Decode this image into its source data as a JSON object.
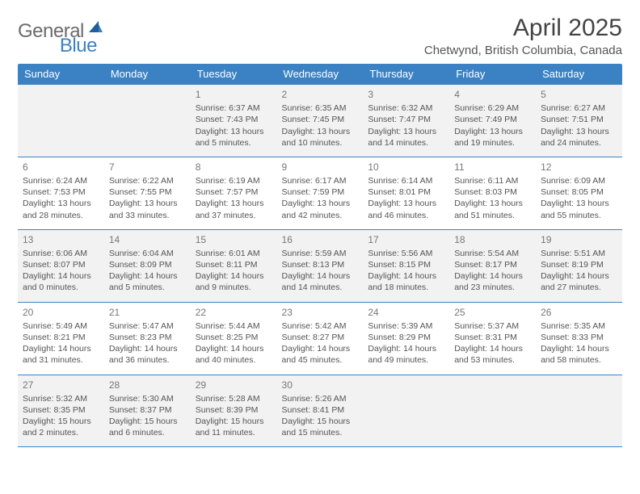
{
  "logo": {
    "part1": "General",
    "part2": "Blue"
  },
  "title": "April 2025",
  "subtitle": "Chetwynd, British Columbia, Canada",
  "colors": {
    "header_bg": "#3b82c4",
    "header_text": "#ffffff",
    "cell_text": "#555555",
    "alt_row_bg": "#f2f2f2",
    "border": "#3b82c4"
  },
  "daynames": [
    "Sunday",
    "Monday",
    "Tuesday",
    "Wednesday",
    "Thursday",
    "Friday",
    "Saturday"
  ],
  "weeks": [
    [
      null,
      null,
      {
        "n": "1",
        "sr": "Sunrise: 6:37 AM",
        "ss": "Sunset: 7:43 PM",
        "d1": "Daylight: 13 hours",
        "d2": "and 5 minutes."
      },
      {
        "n": "2",
        "sr": "Sunrise: 6:35 AM",
        "ss": "Sunset: 7:45 PM",
        "d1": "Daylight: 13 hours",
        "d2": "and 10 minutes."
      },
      {
        "n": "3",
        "sr": "Sunrise: 6:32 AM",
        "ss": "Sunset: 7:47 PM",
        "d1": "Daylight: 13 hours",
        "d2": "and 14 minutes."
      },
      {
        "n": "4",
        "sr": "Sunrise: 6:29 AM",
        "ss": "Sunset: 7:49 PM",
        "d1": "Daylight: 13 hours",
        "d2": "and 19 minutes."
      },
      {
        "n": "5",
        "sr": "Sunrise: 6:27 AM",
        "ss": "Sunset: 7:51 PM",
        "d1": "Daylight: 13 hours",
        "d2": "and 24 minutes."
      }
    ],
    [
      {
        "n": "6",
        "sr": "Sunrise: 6:24 AM",
        "ss": "Sunset: 7:53 PM",
        "d1": "Daylight: 13 hours",
        "d2": "and 28 minutes."
      },
      {
        "n": "7",
        "sr": "Sunrise: 6:22 AM",
        "ss": "Sunset: 7:55 PM",
        "d1": "Daylight: 13 hours",
        "d2": "and 33 minutes."
      },
      {
        "n": "8",
        "sr": "Sunrise: 6:19 AM",
        "ss": "Sunset: 7:57 PM",
        "d1": "Daylight: 13 hours",
        "d2": "and 37 minutes."
      },
      {
        "n": "9",
        "sr": "Sunrise: 6:17 AM",
        "ss": "Sunset: 7:59 PM",
        "d1": "Daylight: 13 hours",
        "d2": "and 42 minutes."
      },
      {
        "n": "10",
        "sr": "Sunrise: 6:14 AM",
        "ss": "Sunset: 8:01 PM",
        "d1": "Daylight: 13 hours",
        "d2": "and 46 minutes."
      },
      {
        "n": "11",
        "sr": "Sunrise: 6:11 AM",
        "ss": "Sunset: 8:03 PM",
        "d1": "Daylight: 13 hours",
        "d2": "and 51 minutes."
      },
      {
        "n": "12",
        "sr": "Sunrise: 6:09 AM",
        "ss": "Sunset: 8:05 PM",
        "d1": "Daylight: 13 hours",
        "d2": "and 55 minutes."
      }
    ],
    [
      {
        "n": "13",
        "sr": "Sunrise: 6:06 AM",
        "ss": "Sunset: 8:07 PM",
        "d1": "Daylight: 14 hours",
        "d2": "and 0 minutes."
      },
      {
        "n": "14",
        "sr": "Sunrise: 6:04 AM",
        "ss": "Sunset: 8:09 PM",
        "d1": "Daylight: 14 hours",
        "d2": "and 5 minutes."
      },
      {
        "n": "15",
        "sr": "Sunrise: 6:01 AM",
        "ss": "Sunset: 8:11 PM",
        "d1": "Daylight: 14 hours",
        "d2": "and 9 minutes."
      },
      {
        "n": "16",
        "sr": "Sunrise: 5:59 AM",
        "ss": "Sunset: 8:13 PM",
        "d1": "Daylight: 14 hours",
        "d2": "and 14 minutes."
      },
      {
        "n": "17",
        "sr": "Sunrise: 5:56 AM",
        "ss": "Sunset: 8:15 PM",
        "d1": "Daylight: 14 hours",
        "d2": "and 18 minutes."
      },
      {
        "n": "18",
        "sr": "Sunrise: 5:54 AM",
        "ss": "Sunset: 8:17 PM",
        "d1": "Daylight: 14 hours",
        "d2": "and 23 minutes."
      },
      {
        "n": "19",
        "sr": "Sunrise: 5:51 AM",
        "ss": "Sunset: 8:19 PM",
        "d1": "Daylight: 14 hours",
        "d2": "and 27 minutes."
      }
    ],
    [
      {
        "n": "20",
        "sr": "Sunrise: 5:49 AM",
        "ss": "Sunset: 8:21 PM",
        "d1": "Daylight: 14 hours",
        "d2": "and 31 minutes."
      },
      {
        "n": "21",
        "sr": "Sunrise: 5:47 AM",
        "ss": "Sunset: 8:23 PM",
        "d1": "Daylight: 14 hours",
        "d2": "and 36 minutes."
      },
      {
        "n": "22",
        "sr": "Sunrise: 5:44 AM",
        "ss": "Sunset: 8:25 PM",
        "d1": "Daylight: 14 hours",
        "d2": "and 40 minutes."
      },
      {
        "n": "23",
        "sr": "Sunrise: 5:42 AM",
        "ss": "Sunset: 8:27 PM",
        "d1": "Daylight: 14 hours",
        "d2": "and 45 minutes."
      },
      {
        "n": "24",
        "sr": "Sunrise: 5:39 AM",
        "ss": "Sunset: 8:29 PM",
        "d1": "Daylight: 14 hours",
        "d2": "and 49 minutes."
      },
      {
        "n": "25",
        "sr": "Sunrise: 5:37 AM",
        "ss": "Sunset: 8:31 PM",
        "d1": "Daylight: 14 hours",
        "d2": "and 53 minutes."
      },
      {
        "n": "26",
        "sr": "Sunrise: 5:35 AM",
        "ss": "Sunset: 8:33 PM",
        "d1": "Daylight: 14 hours",
        "d2": "and 58 minutes."
      }
    ],
    [
      {
        "n": "27",
        "sr": "Sunrise: 5:32 AM",
        "ss": "Sunset: 8:35 PM",
        "d1": "Daylight: 15 hours",
        "d2": "and 2 minutes."
      },
      {
        "n": "28",
        "sr": "Sunrise: 5:30 AM",
        "ss": "Sunset: 8:37 PM",
        "d1": "Daylight: 15 hours",
        "d2": "and 6 minutes."
      },
      {
        "n": "29",
        "sr": "Sunrise: 5:28 AM",
        "ss": "Sunset: 8:39 PM",
        "d1": "Daylight: 15 hours",
        "d2": "and 11 minutes."
      },
      {
        "n": "30",
        "sr": "Sunrise: 5:26 AM",
        "ss": "Sunset: 8:41 PM",
        "d1": "Daylight: 15 hours",
        "d2": "and 15 minutes."
      },
      null,
      null,
      null
    ]
  ]
}
